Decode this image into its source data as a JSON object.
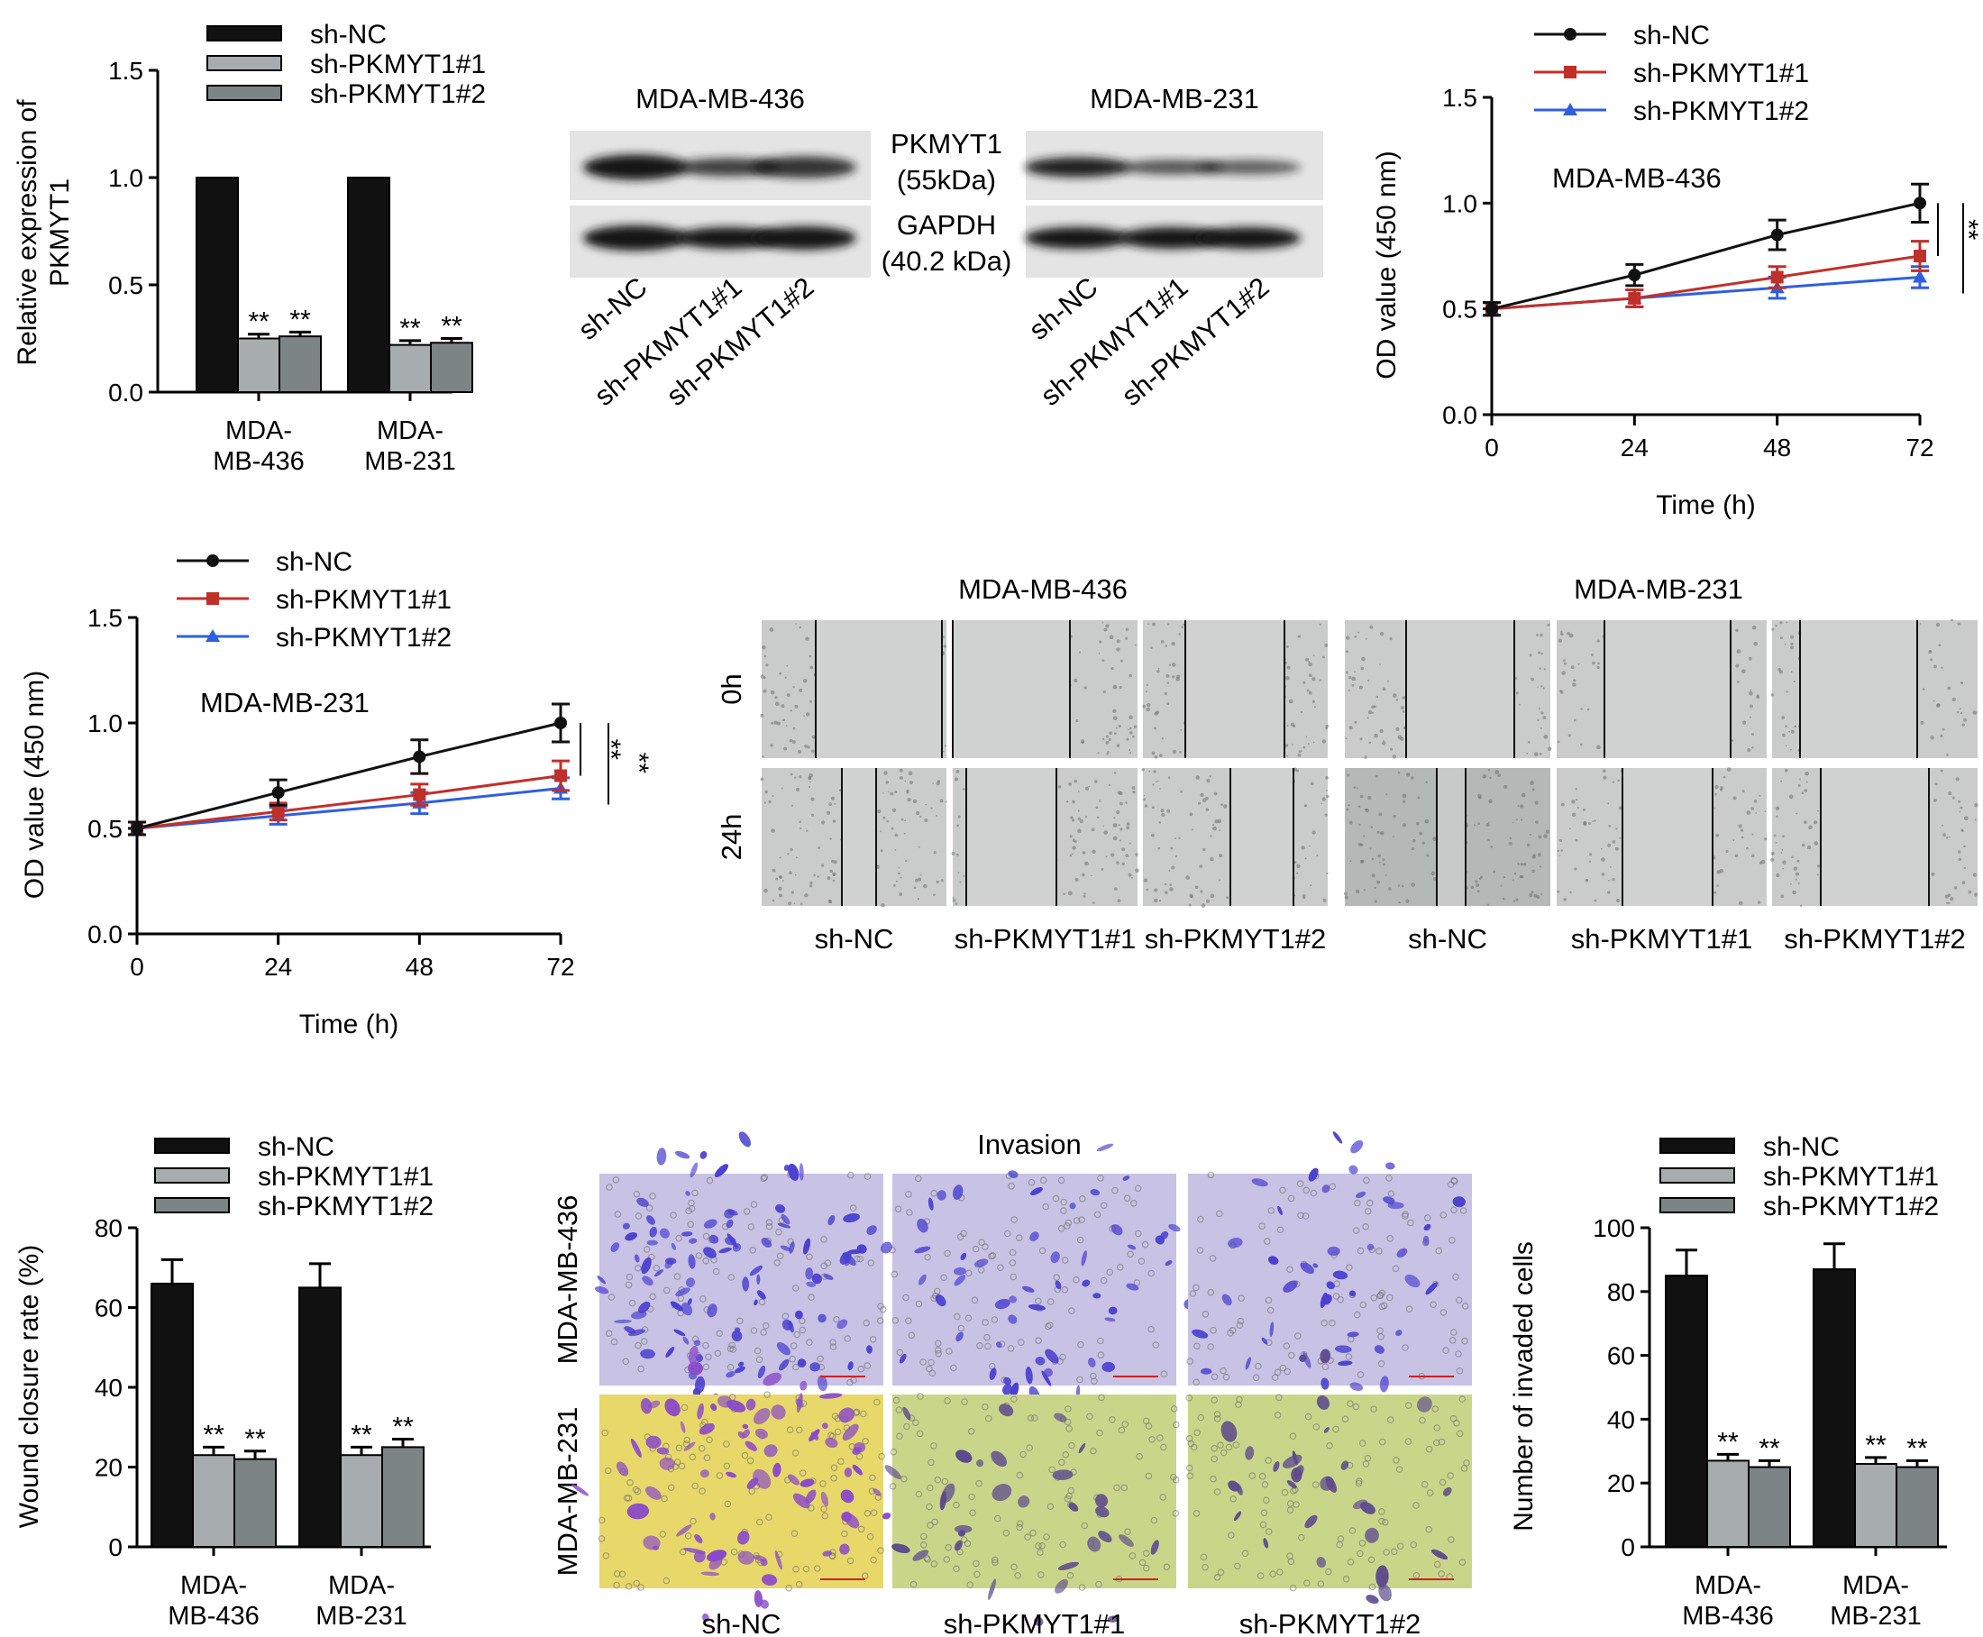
{
  "colors": {
    "sh_NC": "#111111",
    "sh_PKMYT1_1": "#a7adaf",
    "sh_PKMYT1_2": "#7c8486",
    "line_NC": "#111111",
    "line_1": "#c0302a",
    "line_2": "#2f5fe0",
    "blot_bg": "#e4e4e4",
    "band": "#151515",
    "wound_bg": "#c9cccb",
    "crystal_violet": "#7060c8",
    "invasion_bg1": "#c8c2e4",
    "invasion_bg2": "#dfe05a"
  },
  "legend_groups": [
    "sh-NC",
    "sh-PKMYT1#1",
    "sh-PKMYT1#2"
  ],
  "significance": "**",
  "western_blot": {
    "cell_lines": [
      "MDA-MB-436",
      "MDA-MB-231"
    ],
    "protein1_line1": "PKMYT1",
    "protein1_line2": "(55kDa)",
    "protein2_line1": "GAPDH",
    "protein2_line2": "(40.2 kDa)",
    "lanes": [
      "sh-NC",
      "sh-PKMYT1#1",
      "sh-PKMYT1#2"
    ]
  },
  "wound_healing": {
    "cell_lines": [
      "MDA-MB-436",
      "MDA-MB-231"
    ],
    "timepoints": [
      "0h",
      "24h"
    ],
    "groups": [
      "sh-NC",
      "sh-PKMYT1#1",
      "sh-PKMYT1#2",
      "sh-NC",
      "sh-PKMYT1#1",
      "sh-PKMYT1#2"
    ]
  },
  "invasion": {
    "title": "Invasion",
    "cell_lines": [
      "MDA-MB-436",
      "MDA-MB-231"
    ],
    "groups": [
      "sh-NC",
      "sh-PKMYT1#1",
      "sh-PKMYT1#2"
    ]
  },
  "chart_data": [
    {
      "id": "pkmyt1_expression",
      "type": "bar",
      "ylabel": "Relative expression of PKMYT1",
      "ylabel_lines": [
        "Relative expression of",
        "PKMYT1"
      ],
      "ylim": [
        0,
        1.5
      ],
      "yticks": [
        "0.0",
        "0.5",
        "1.0",
        "1.5"
      ],
      "categories": [
        "MDA-MB-436",
        "MDA-MB-231"
      ],
      "category_lines": [
        [
          "MDA-",
          "MB-436"
        ],
        [
          "MDA-",
          "MB-231"
        ]
      ],
      "series": [
        {
          "name": "sh-NC",
          "values": [
            1.0,
            1.0
          ],
          "errors": [
            0,
            0
          ],
          "sig": [
            "",
            ""
          ]
        },
        {
          "name": "sh-PKMYT1#1",
          "values": [
            0.25,
            0.22
          ],
          "errors": [
            0.02,
            0.02
          ],
          "sig": [
            "**",
            "**"
          ]
        },
        {
          "name": "sh-PKMYT1#2",
          "values": [
            0.26,
            0.23
          ],
          "errors": [
            0.02,
            0.02
          ],
          "sig": [
            "**",
            "**"
          ]
        }
      ]
    },
    {
      "id": "cck8_436",
      "type": "line",
      "annotation": "MDA-MB-436",
      "xlabel": "Time (h)",
      "ylabel": "OD value (450 nm)",
      "x": [
        0,
        24,
        48,
        72
      ],
      "xlim": [
        0,
        72
      ],
      "ylim": [
        0,
        1.5
      ],
      "xticks": [
        "0",
        "24",
        "48",
        "72"
      ],
      "yticks": [
        "0.0",
        "0.5",
        "1.0",
        "1.5"
      ],
      "series": [
        {
          "name": "sh-NC",
          "marker": "circle",
          "values": [
            0.5,
            0.66,
            0.85,
            1.0
          ],
          "errors": [
            0.03,
            0.05,
            0.07,
            0.09
          ]
        },
        {
          "name": "sh-PKMYT1#1",
          "marker": "square",
          "values": [
            0.5,
            0.55,
            0.65,
            0.75
          ],
          "errors": [
            0.03,
            0.04,
            0.05,
            0.07
          ]
        },
        {
          "name": "sh-PKMYT1#2",
          "marker": "triangle",
          "values": [
            0.5,
            0.55,
            0.6,
            0.65
          ],
          "errors": [
            0.03,
            0.04,
            0.05,
            0.05
          ]
        }
      ],
      "brackets": [
        "**",
        "**"
      ]
    },
    {
      "id": "cck8_231",
      "type": "line",
      "annotation": "MDA-MB-231",
      "xlabel": "Time (h)",
      "ylabel": "OD value (450 nm)",
      "x": [
        0,
        24,
        48,
        72
      ],
      "xlim": [
        0,
        72
      ],
      "ylim": [
        0,
        1.5
      ],
      "xticks": [
        "0",
        "24",
        "48",
        "72"
      ],
      "yticks": [
        "0.0",
        "0.5",
        "1.0",
        "1.5"
      ],
      "series": [
        {
          "name": "sh-NC",
          "marker": "circle",
          "values": [
            0.5,
            0.67,
            0.84,
            1.0
          ],
          "errors": [
            0.03,
            0.06,
            0.08,
            0.09
          ]
        },
        {
          "name": "sh-PKMYT1#1",
          "marker": "square",
          "values": [
            0.5,
            0.58,
            0.66,
            0.75
          ],
          "errors": [
            0.03,
            0.04,
            0.05,
            0.07
          ]
        },
        {
          "name": "sh-PKMYT1#2",
          "marker": "triangle",
          "values": [
            0.5,
            0.56,
            0.62,
            0.69
          ],
          "errors": [
            0.03,
            0.04,
            0.05,
            0.05
          ]
        }
      ],
      "brackets": [
        "**",
        "**"
      ]
    },
    {
      "id": "wound_closure",
      "type": "bar",
      "ylabel": "Wound closure rate (%)",
      "ylim": [
        0,
        80
      ],
      "yticks": [
        "0",
        "20",
        "40",
        "60",
        "80"
      ],
      "categories": [
        "MDA-MB-436",
        "MDA-MB-231"
      ],
      "category_lines": [
        [
          "MDA-",
          "MB-436"
        ],
        [
          "MDA-",
          "MB-231"
        ]
      ],
      "series": [
        {
          "name": "sh-NC",
          "values": [
            66,
            65
          ],
          "errors": [
            6,
            6
          ],
          "sig": [
            "",
            ""
          ]
        },
        {
          "name": "sh-PKMYT1#1",
          "values": [
            23,
            23
          ],
          "errors": [
            2,
            2
          ],
          "sig": [
            "**",
            "**"
          ]
        },
        {
          "name": "sh-PKMYT1#2",
          "values": [
            22,
            25
          ],
          "errors": [
            2,
            2
          ],
          "sig": [
            "**",
            "**"
          ]
        }
      ]
    },
    {
      "id": "invaded_cells",
      "type": "bar",
      "ylabel": "Number of invaded cells",
      "ylim": [
        0,
        100
      ],
      "yticks": [
        "0",
        "20",
        "40",
        "60",
        "80",
        "100"
      ],
      "categories": [
        "MDA-MB-436",
        "MDA-MB-231"
      ],
      "category_lines": [
        [
          "MDA-",
          "MB-436"
        ],
        [
          "MDA-",
          "MB-231"
        ]
      ],
      "series": [
        {
          "name": "sh-NC",
          "values": [
            85,
            87
          ],
          "errors": [
            8,
            8
          ],
          "sig": [
            "",
            ""
          ]
        },
        {
          "name": "sh-PKMYT1#1",
          "values": [
            27,
            26
          ],
          "errors": [
            2,
            2
          ],
          "sig": [
            "**",
            "**"
          ]
        },
        {
          "name": "sh-PKMYT1#2",
          "values": [
            25,
            25
          ],
          "errors": [
            2,
            2
          ],
          "sig": [
            "**",
            "**"
          ]
        }
      ]
    }
  ]
}
